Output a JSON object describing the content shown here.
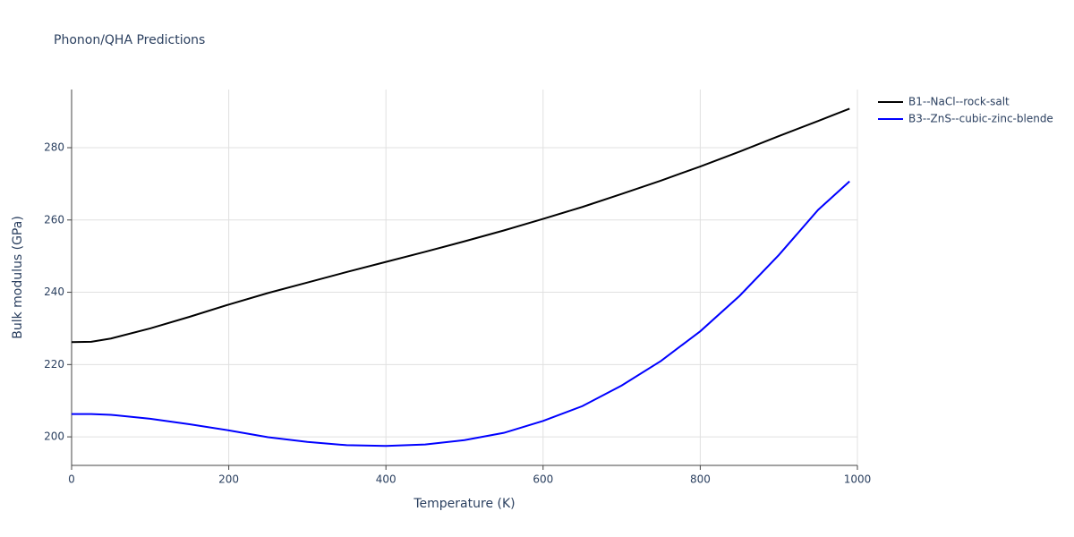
{
  "chart_data": {
    "type": "line",
    "title": "Phonon/QHA Predictions",
    "x_label": "Temperature (K)",
    "y_label": "Bulk modulus (GPa)",
    "x": [
      0,
      25,
      50,
      100,
      150,
      200,
      250,
      300,
      350,
      400,
      450,
      500,
      550,
      600,
      650,
      700,
      750,
      800,
      850,
      900,
      950,
      990
    ],
    "series": [
      {
        "name": "B1--NaCl--rock-salt",
        "color": "#000000",
        "values": [
          226.2,
          226.3,
          227.2,
          230,
          233.2,
          236.6,
          239.8,
          242.7,
          245.6,
          248.4,
          251.2,
          254.1,
          257.1,
          260.3,
          263.6,
          267.2,
          270.9,
          274.8,
          278.9,
          283.2,
          287.4,
          290.8
        ]
      },
      {
        "name": "B3--ZnS--cubic-zinc-blende",
        "color": "#0000ff",
        "values": [
          206.3,
          206.3,
          206.1,
          205,
          203.5,
          201.8,
          199.9,
          198.6,
          197.7,
          197.5,
          197.9,
          199.1,
          201.1,
          204.4,
          208.5,
          214.2,
          221.0,
          229.2,
          239.0,
          250.3,
          262.8,
          270.7
        ]
      }
    ],
    "xlim": [
      0,
      1000
    ],
    "ylim": [
      192.1,
      296.1
    ],
    "xticks": [
      0,
      200,
      400,
      600,
      800,
      1000
    ],
    "yticks": [
      200,
      220,
      240,
      260,
      280
    ],
    "grid": true,
    "legend": "right"
  }
}
